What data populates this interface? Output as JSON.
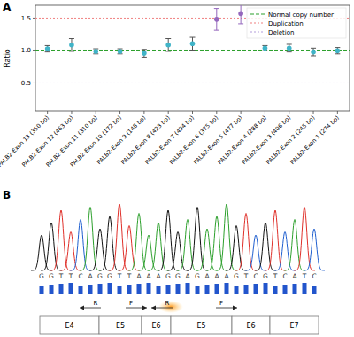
{
  "chart_data": {
    "type": "scatter",
    "panel_label": "A",
    "y_label": "Ratio",
    "categories": [
      "PALB2-Exon 13 (350 bp)",
      "PALB2-Exon 12 (463 bp)",
      "PALB2-Exon 11 (310 bp)",
      "PALB2-Exon 10 (172 bp)",
      "PALB2-Exon 9 (148 bp)",
      "PALB2-Exon 8 (423 bp)",
      "PALB2-Exon 7 (494 bp)",
      "PALB2-Exon 6 (375 bp)",
      "PALB2-Exon 5 (477 bp)",
      "PALB2-Exon 4 (288 bp)",
      "PALB2-Exon 3 (406 bp)",
      "PALB2-Exon 2 (245 bp)",
      "PALB2-Exon 1 (274 bp)"
    ],
    "values": [
      1.02,
      1.08,
      0.98,
      0.98,
      0.95,
      1.08,
      1.1,
      1.48,
      1.57,
      1.03,
      1.03,
      0.97,
      0.99
    ],
    "errors": [
      0.05,
      0.1,
      0.04,
      0.04,
      0.06,
      0.1,
      0.1,
      0.17,
      0.16,
      0.04,
      0.06,
      0.06,
      0.05
    ],
    "colors": [
      "#40b4c8",
      "#40b4c8",
      "#40b4c8",
      "#40b4c8",
      "#40b4c8",
      "#40b4c8",
      "#40b4c8",
      "#9467bd",
      "#9467bd",
      "#40b4c8",
      "#40b4c8",
      "#40b4c8",
      "#40b4c8"
    ],
    "marker": "circle",
    "ylim": [
      0.05,
      1.7
    ],
    "yticks": [
      0.5,
      {
        "value": 1,
        "label": "1.0"
      },
      1.5
    ],
    "reference_lines": [
      {
        "name": "Normal copy number",
        "value": 1,
        "color": "#2ca02c",
        "line_style": "dashed"
      },
      {
        "name": "Duplication",
        "value": 1.5,
        "color": "#f08080",
        "line_style": "dotted"
      },
      {
        "name": "Deletion",
        "value": 0.5,
        "color": "#b39ddb",
        "line_style": "dotted"
      }
    ],
    "legend": "upper right"
  },
  "figure_b": {
    "panel_label": "B",
    "sequence": [
      "G",
      "G",
      "T",
      "T",
      "C",
      "A",
      "G",
      "G",
      "T",
      "T",
      "A",
      "A",
      "A",
      "G",
      "G",
      "A",
      "G",
      "A",
      "A",
      "A",
      "G",
      "T",
      "C",
      "G",
      "T",
      "C",
      "A",
      "T",
      "C"
    ],
    "exons": [
      "E4",
      "E5",
      "E6",
      "E5",
      "E6",
      "E7"
    ],
    "primer_labels": [
      "R",
      "F",
      "R",
      "F"
    ]
  }
}
